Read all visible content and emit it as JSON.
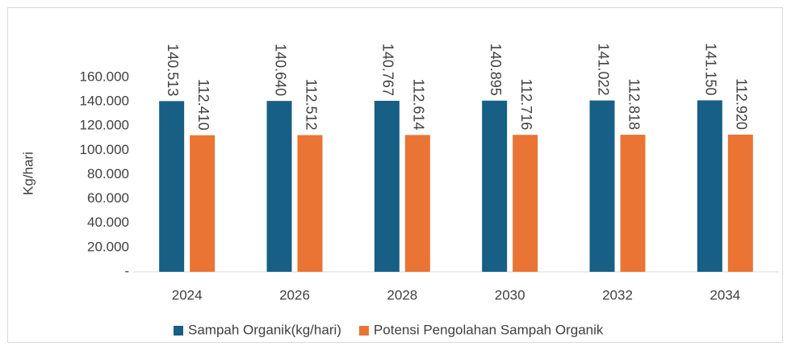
{
  "chart_data": {
    "type": "bar",
    "y_label": "Kg/hari",
    "categories": [
      "2024",
      "2026",
      "2028",
      "2030",
      "2032",
      "2034"
    ],
    "series": [
      {
        "name": "Sampah Organik(kg/hari)",
        "color": "#175f84",
        "values": [
          140513,
          140640,
          140767,
          140895,
          141022,
          141150
        ],
        "value_labels": [
          "140.513",
          "140.640",
          "140.767",
          "140.895",
          "141.022",
          "141.150"
        ]
      },
      {
        "name": "Potensi Pengolahan Sampah Organik",
        "color": "#ea7434",
        "values": [
          112410,
          112512,
          112614,
          112716,
          112818,
          112920
        ],
        "value_labels": [
          "112.410",
          "112.512",
          "112.614",
          "112.716",
          "112.818",
          "112.920"
        ]
      }
    ],
    "ylim": [
      0,
      160000
    ],
    "yticks": [
      {
        "value": 0,
        "label": "-"
      },
      {
        "value": 20000,
        "label": "20.000"
      },
      {
        "value": 40000,
        "label": "40.000"
      },
      {
        "value": 60000,
        "label": "60.000"
      },
      {
        "value": 80000,
        "label": "80.000"
      },
      {
        "value": 100000,
        "label": "100.000"
      },
      {
        "value": 120000,
        "label": "120.000"
      },
      {
        "value": 140000,
        "label": "140.000"
      },
      {
        "value": 160000,
        "label": "160.000"
      }
    ],
    "grid": false,
    "legend": "bottom"
  }
}
